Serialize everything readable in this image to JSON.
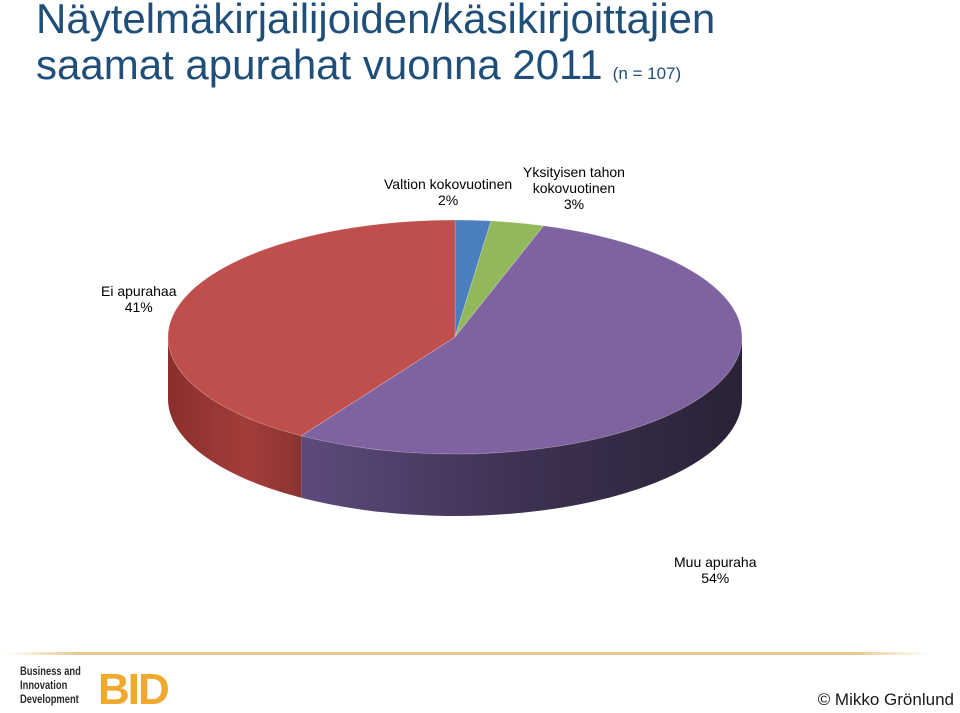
{
  "header": {
    "title_line1": "Näytelmäkirjailijoiden/käsikirjoittajien",
    "title_line2": "saamat apurahat vuonna 2011",
    "sample_note": "(n = 107)"
  },
  "chart_data": {
    "type": "pie",
    "style": "3d-exploded-tilted",
    "title": "Näytelmäkirjailijoiden/käsikirjoittajien saamat apurahat vuonna 2011",
    "subtitle": "(n = 107)",
    "legend": "none",
    "slices": [
      {
        "label": "Valtion kokovuotinen",
        "value": 2,
        "value_label": "2%",
        "color": "#4a7ebf"
      },
      {
        "label": "Yksityisen tahon kokovuotinen",
        "value": 3,
        "value_label": "3%",
        "color": "#93b85c"
      },
      {
        "label": "Muu apuraha",
        "value": 54,
        "value_label": "54%",
        "color": "#7e63a0"
      },
      {
        "label": "Ei apurahaa",
        "value": 41,
        "value_label": "41%",
        "color": "#bf4f4d"
      }
    ]
  },
  "labels": {
    "valtion": {
      "line1": "Valtion kokovuotinen",
      "line2": "2%"
    },
    "yksityisen": {
      "line1": "Yksityisen tahon",
      "line2": "kokovuotinen",
      "line3": "3%"
    },
    "ei": {
      "line1": "Ei apurahaa",
      "line2": "41%"
    },
    "muu": {
      "line1": "Muu apuraha",
      "line2": "54%"
    }
  },
  "footer": {
    "logo_line1": "Business and",
    "logo_line2": "Innovation",
    "logo_line3": "Development",
    "logo_mark": "BID",
    "logo_color": "#f0a92e",
    "copyright": "© Mikko Grönlund"
  }
}
